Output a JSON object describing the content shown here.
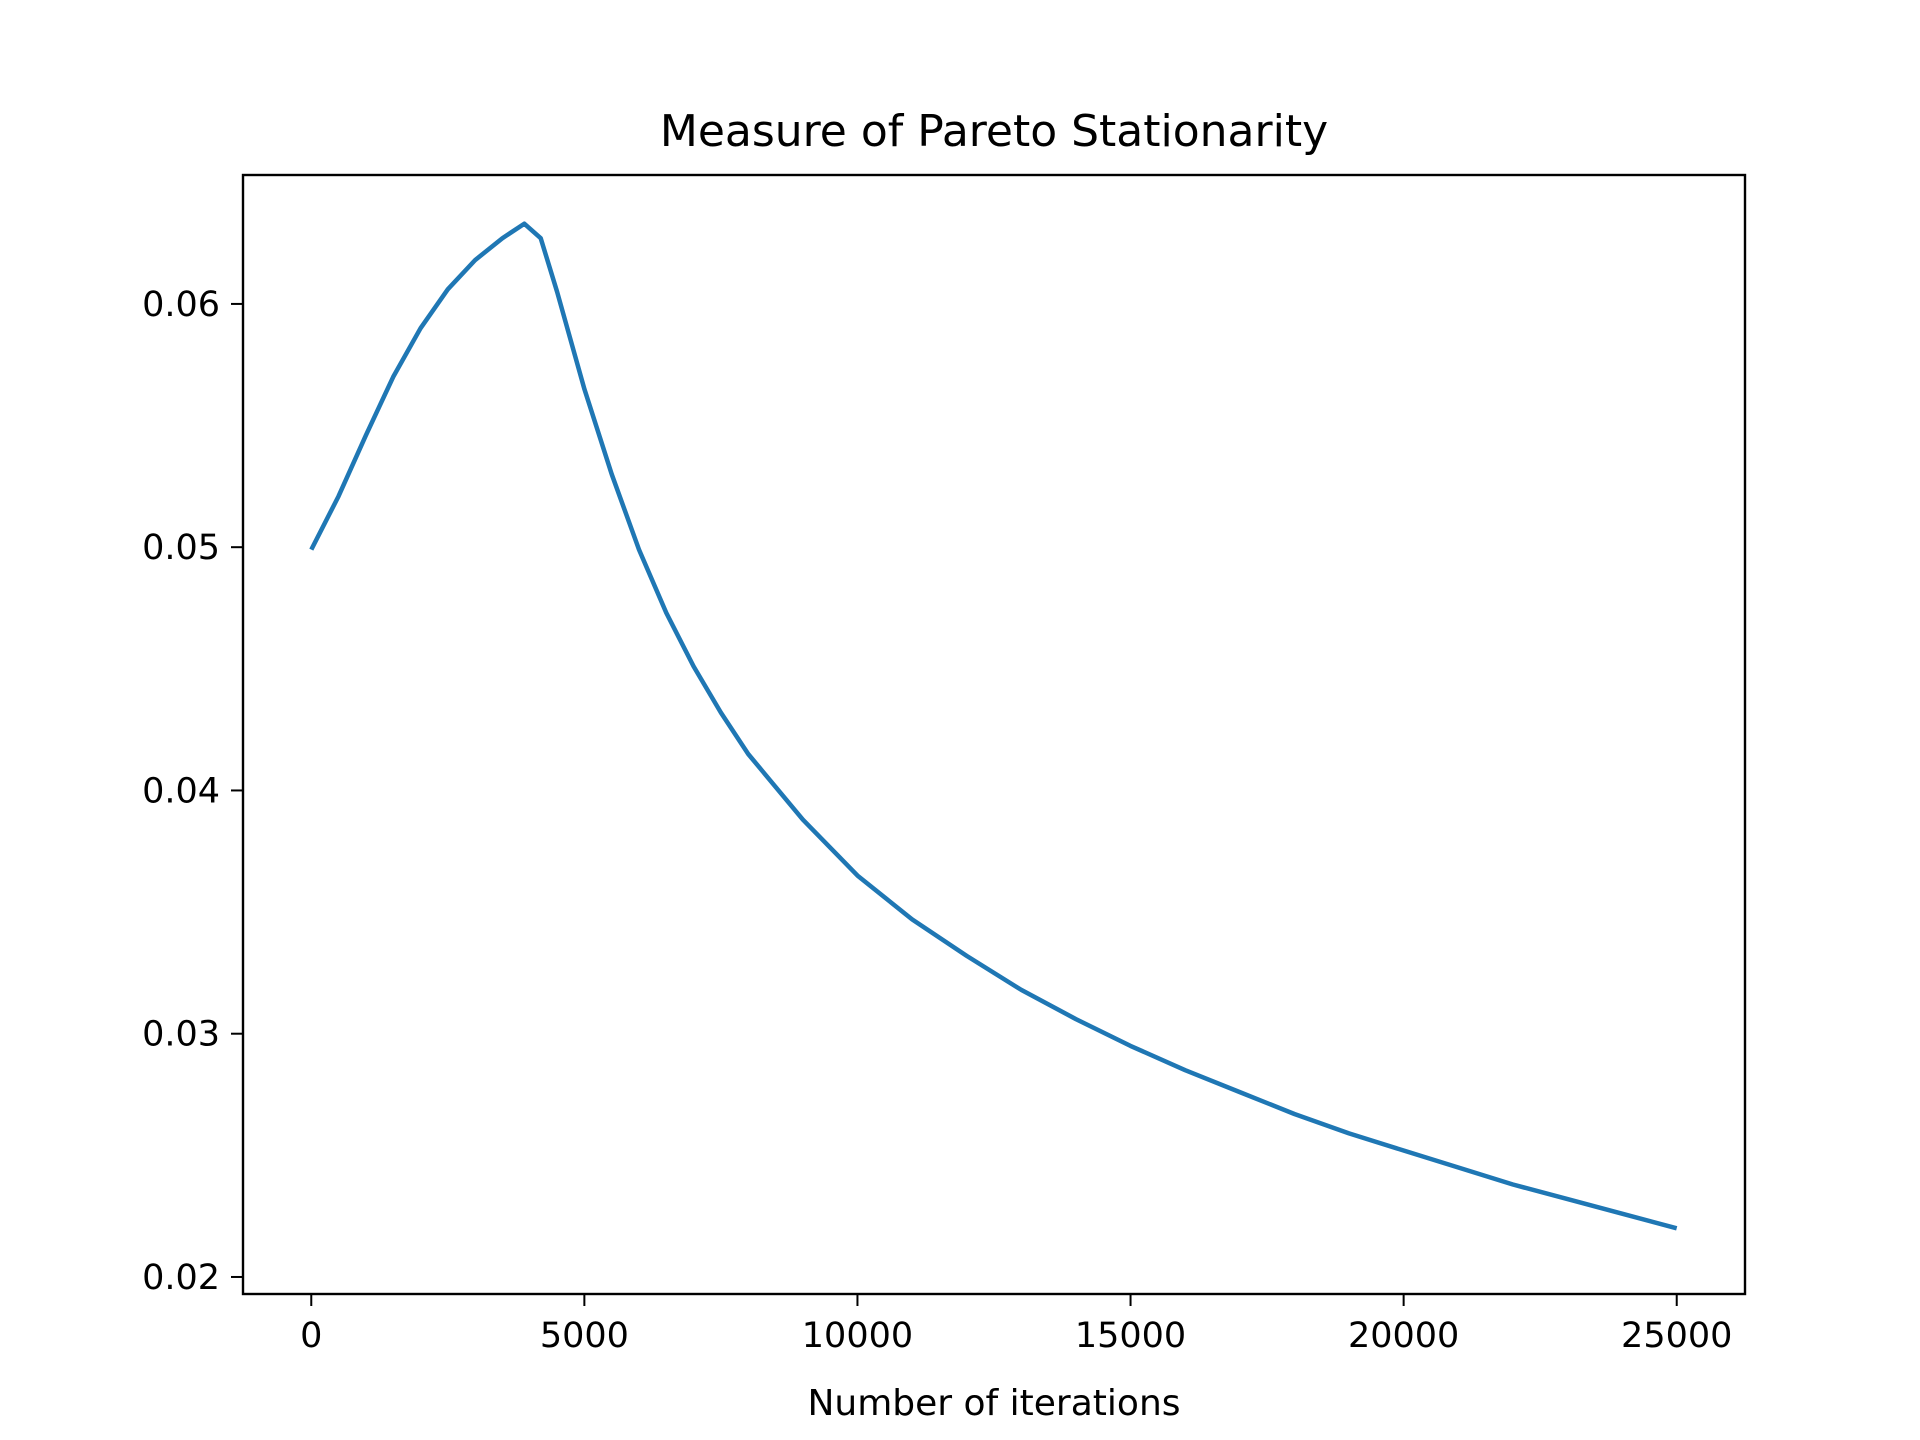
{
  "chart_data": {
    "type": "line",
    "title": "Measure of Pareto Stationarity",
    "xlabel": "Number of iterations",
    "ylabel": "",
    "xlim": [
      -1250,
      26250
    ],
    "ylim": [
      0.0193,
      0.0653
    ],
    "x_ticks": [
      0,
      5000,
      10000,
      15000,
      20000,
      25000
    ],
    "x_tick_labels": [
      "0",
      "5000",
      "10000",
      "15000",
      "20000",
      "25000"
    ],
    "y_ticks": [
      0.02,
      0.03,
      0.04,
      0.05,
      0.06
    ],
    "y_tick_labels": [
      "0.02",
      "0.03",
      "0.04",
      "0.05",
      "0.06"
    ],
    "grid": false,
    "series": [
      {
        "color": "#1f77b4",
        "x": [
          0,
          500,
          1000,
          1500,
          2000,
          2500,
          3000,
          3500,
          3900,
          4200,
          4500,
          5000,
          5500,
          6000,
          6500,
          7000,
          7500,
          8000,
          9000,
          10000,
          11000,
          12000,
          13000,
          14000,
          15000,
          16000,
          17000,
          18000,
          19000,
          20000,
          21000,
          22000,
          23000,
          24000,
          25000
        ],
        "y": [
          0.0499,
          0.0521,
          0.0546,
          0.057,
          0.059,
          0.0606,
          0.0618,
          0.0627,
          0.0633,
          0.0627,
          0.0605,
          0.0565,
          0.053,
          0.0499,
          0.0473,
          0.0451,
          0.0432,
          0.0415,
          0.0388,
          0.0365,
          0.0347,
          0.0332,
          0.0318,
          0.0306,
          0.0295,
          0.0285,
          0.0276,
          0.0267,
          0.0259,
          0.0252,
          0.0245,
          0.0238,
          0.0232,
          0.0226,
          0.022
        ]
      }
    ]
  }
}
